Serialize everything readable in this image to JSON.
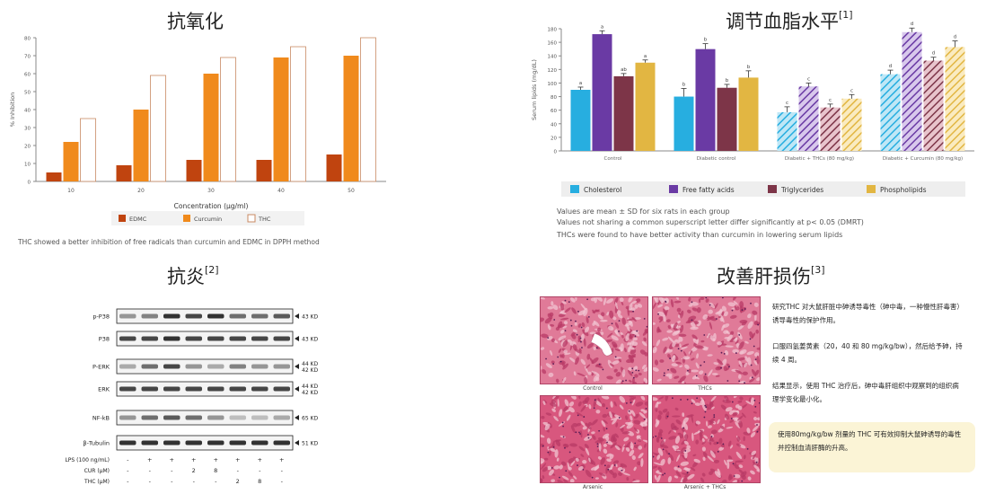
{
  "panels": {
    "antioxidant": {
      "title": "抗氧化",
      "caption": "THC showed a better inhibition of free radicals than curcumin and EDMC in DPPH method"
    },
    "lipid": {
      "title": "调节血脂水平",
      "ref": "[1]",
      "notes": [
        "Values are mean ± SD for six rats in each group",
        "Values not sharing a common superscript letter differ significantly at p< 0.05 (DMRT)",
        "THCs were found to have better activity than curcumin in lowering serum lipids"
      ]
    },
    "inflammation": {
      "title": "抗炎",
      "ref": "[2]",
      "bands": [
        {
          "label": "p-P38",
          "kd": "43 KD"
        },
        {
          "label": "P38",
          "kd": "43 KD"
        },
        {
          "label": "P-ERK",
          "kd": "44 KD",
          "kd2": "42 KD"
        },
        {
          "label": "ERK",
          "kd": "44 KD",
          "kd2": "42 KD"
        },
        {
          "label": "NF-kB",
          "kd": "65 KD"
        },
        {
          "label": "β-Tubulin",
          "kd": "51 KD"
        }
      ],
      "treatments": [
        {
          "label": "LPS (100 ng/mL)",
          "cells": [
            "-",
            "+",
            "+",
            "+",
            "+",
            "+",
            "+",
            "+"
          ]
        },
        {
          "label": "CUR (μM)",
          "cells": [
            "-",
            "-",
            "-",
            "2",
            "8",
            "-",
            "-",
            "-"
          ]
        },
        {
          "label": "THC (μM)",
          "cells": [
            "-",
            "-",
            "-",
            "-",
            "-",
            "2",
            "8",
            "-"
          ]
        }
      ]
    },
    "liver": {
      "title": "改善肝损伤",
      "ref": "[3]",
      "images": [
        "Control",
        "THCs",
        "Arsenic",
        "Arsenic + THCs"
      ],
      "paragraphs": [
        "研究THC 对大鼠肝脏中砷诱导毒性（砷中毒，一种慢性肝毒害）诱导毒性的保护作用。",
        "口服四氢姜黄素（20，40 和 80 mg/kg/bw），然后给予砷，持续 4 周。",
        "结果显示，使用 THC 治疗后，砷中毒肝组织中观察到的组织病理学变化最小化。"
      ],
      "highlight": "使用80mg/kg/bw 剂量的 THC 可有效抑制大鼠砷诱导的毒性并控制血清肝酶的升高。"
    }
  },
  "chart_data": [
    {
      "type": "bar",
      "categories": [
        "10",
        "20",
        "30",
        "40",
        "50"
      ],
      "series": [
        {
          "name": "EDMC",
          "values": [
            5,
            9,
            12,
            12,
            15
          ],
          "color": "#c0440f"
        },
        {
          "name": "Curcumin",
          "values": [
            22,
            40,
            60,
            69,
            70
          ],
          "color": "#f08a1c"
        },
        {
          "name": "THC",
          "values": [
            35,
            59,
            69,
            75,
            80
          ],
          "color": "#ffffff"
        }
      ],
      "xlabel": "Concentration (μg/ml)",
      "ylabel": "% Inhibition",
      "yticks": [
        "0",
        "10",
        "20",
        "30",
        "40",
        "50",
        "60",
        "70",
        "80"
      ],
      "ylim": [
        0,
        80
      ],
      "legend": "bottom"
    },
    {
      "type": "bar",
      "categories": [
        "Control",
        "Diabetic control",
        "Diabetic + THCs (80 mg/kg)",
        "Diabetic + Curcumin (80 mg/kg)"
      ],
      "series": [
        {
          "name": "Cholesterol",
          "values": [
            90,
            80,
            57,
            113
          ],
          "errors": [
            4,
            12,
            8,
            6
          ],
          "letters": [
            "a",
            "b",
            "c",
            "d"
          ],
          "color": "#27aee0",
          "pattern": "#bfe7f6"
        },
        {
          "name": "Free fatty acids",
          "values": [
            172,
            150,
            95,
            175
          ],
          "errors": [
            5,
            8,
            5,
            6
          ],
          "letters": [
            "a",
            "b",
            "c",
            "d"
          ],
          "color": "#6a3aa4",
          "pattern": "#d8c8ec"
        },
        {
          "name": "Triglycerides",
          "values": [
            110,
            93,
            64,
            133
          ],
          "errors": [
            4,
            5,
            5,
            5
          ],
          "letters": [
            "ab",
            "b",
            "c",
            "d"
          ],
          "color": "#7d3548",
          "pattern": "#e8c4cc"
        },
        {
          "name": "Phospholipids",
          "values": [
            130,
            108,
            77,
            153
          ],
          "errors": [
            4,
            10,
            6,
            9
          ],
          "letters": [
            "a",
            "b",
            "c",
            "d"
          ],
          "color": "#e2b642",
          "pattern": "#faebc0"
        }
      ],
      "ylabel": "Serum lipids (mg/dL)",
      "yticks": [
        "0",
        "20",
        "40",
        "60",
        "80",
        "100",
        "120",
        "140",
        "160",
        "180"
      ],
      "ylim": [
        0,
        180
      ],
      "legend": "bottom"
    }
  ]
}
